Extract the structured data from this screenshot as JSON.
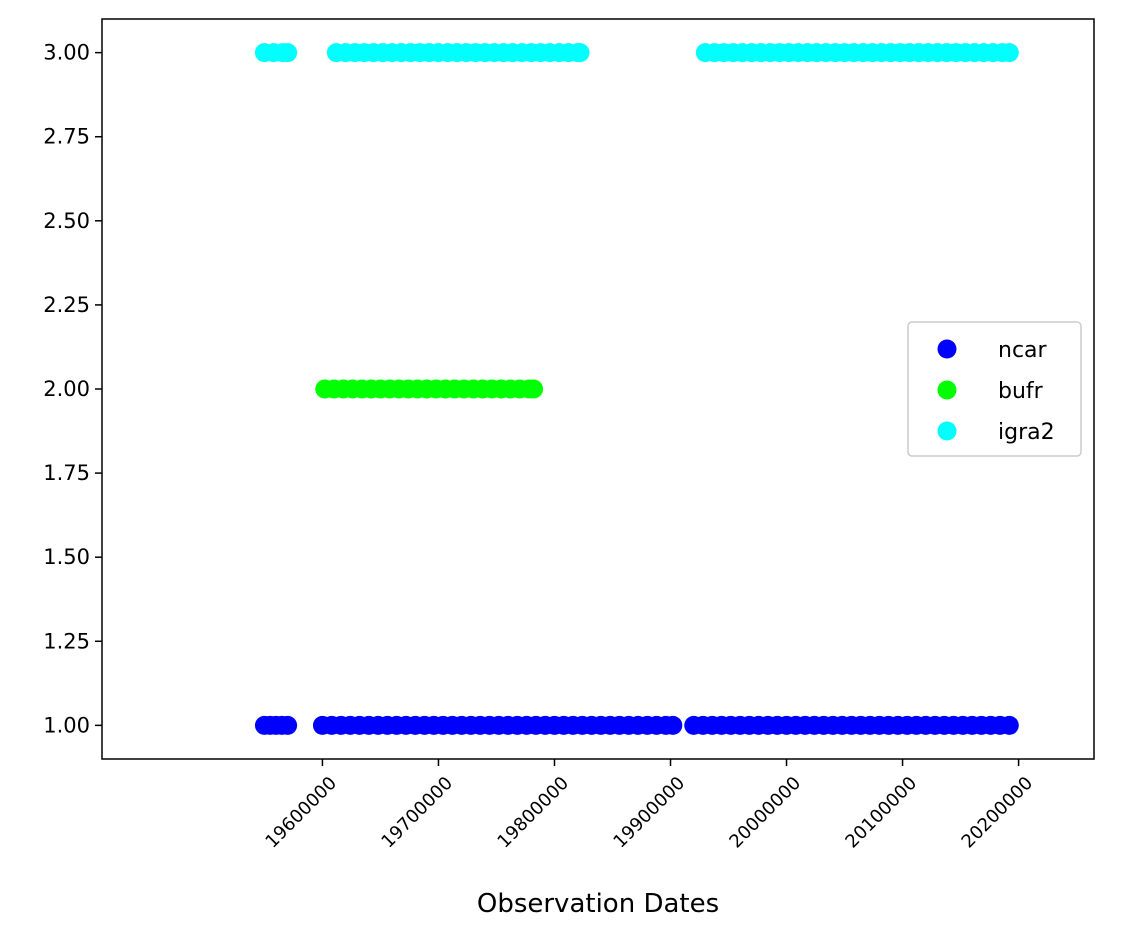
{
  "chart_data": {
    "type": "scatter",
    "title": "",
    "xlabel": "Observation Dates",
    "ylabel": "",
    "xlim": [
      19410000,
      20265000
    ],
    "ylim": [
      0.9,
      3.1
    ],
    "xticks": [
      19600000,
      19700000,
      19800000,
      19900000,
      20000000,
      20100000,
      20200000
    ],
    "xtick_labels": [
      "19600000",
      "19700000",
      "19800000",
      "19900000",
      "20000000",
      "20100000",
      "20200000"
    ],
    "yticks": [
      1.0,
      1.25,
      1.5,
      1.75,
      2.0,
      2.25,
      2.5,
      2.75,
      3.0
    ],
    "ytick_labels": [
      "1.00",
      "1.25",
      "1.50",
      "1.75",
      "2.00",
      "2.25",
      "2.50",
      "2.75",
      "3.00"
    ],
    "grid": false,
    "legend_position": "center-right",
    "series": [
      {
        "name": "ncar",
        "color": "#0000ff",
        "y": 1,
        "x": [
          19550000,
          19555000,
          19560000,
          19565000,
          19570000,
          19600000,
          19608000,
          19616000,
          19624000,
          19632000,
          19640000,
          19648000,
          19656000,
          19664000,
          19672000,
          19680000,
          19688000,
          19696000,
          19704000,
          19712000,
          19720000,
          19728000,
          19736000,
          19744000,
          19752000,
          19760000,
          19768000,
          19776000,
          19784000,
          19792000,
          19800000,
          19808000,
          19816000,
          19824000,
          19832000,
          19840000,
          19848000,
          19856000,
          19864000,
          19872000,
          19880000,
          19888000,
          19896000,
          19902000,
          19920000,
          19928000,
          19936000,
          19944000,
          19952000,
          19960000,
          19968000,
          19976000,
          19984000,
          19992000,
          20000000,
          20008000,
          20016000,
          20024000,
          20032000,
          20040000,
          20048000,
          20056000,
          20064000,
          20072000,
          20080000,
          20088000,
          20096000,
          20104000,
          20112000,
          20120000,
          20128000,
          20136000,
          20144000,
          20152000,
          20160000,
          20168000,
          20176000,
          20184000,
          20192000
        ]
      },
      {
        "name": "bufr",
        "color": "#00ff00",
        "y": 2,
        "x": [
          19602000,
          19610000,
          19618000,
          19626000,
          19634000,
          19642000,
          19650000,
          19658000,
          19666000,
          19674000,
          19682000,
          19690000,
          19698000,
          19706000,
          19714000,
          19722000,
          19730000,
          19738000,
          19746000,
          19754000,
          19762000,
          19770000,
          19778000,
          19782000
        ]
      },
      {
        "name": "igra2",
        "color": "#00ffff",
        "y": 3,
        "x": [
          19550000,
          19558000,
          19566000,
          19570000,
          19612000,
          19620000,
          19628000,
          19636000,
          19644000,
          19652000,
          19660000,
          19668000,
          19676000,
          19684000,
          19692000,
          19700000,
          19708000,
          19716000,
          19724000,
          19732000,
          19740000,
          19748000,
          19756000,
          19764000,
          19772000,
          19780000,
          19788000,
          19796000,
          19804000,
          19812000,
          19820000,
          19822000,
          19930000,
          19938000,
          19946000,
          19954000,
          19962000,
          19970000,
          19978000,
          19986000,
          19994000,
          20002000,
          20010000,
          20018000,
          20026000,
          20034000,
          20042000,
          20050000,
          20058000,
          20066000,
          20074000,
          20082000,
          20090000,
          20098000,
          20106000,
          20114000,
          20122000,
          20130000,
          20138000,
          20146000,
          20154000,
          20162000,
          20170000,
          20178000,
          20186000,
          20192000
        ]
      }
    ]
  }
}
